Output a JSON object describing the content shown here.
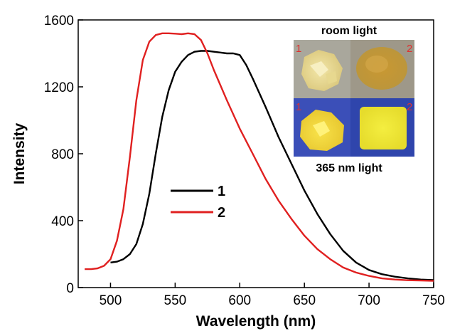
{
  "chart_data": {
    "type": "line",
    "title": "",
    "xlabel": "Wavelength (nm)",
    "ylabel": "Intensity",
    "xlim": [
      475,
      750
    ],
    "ylim": [
      0,
      1600
    ],
    "x_ticks": [
      500,
      550,
      600,
      650,
      700,
      750
    ],
    "y_ticks": [
      0,
      400,
      800,
      1200,
      1600
    ],
    "grid": false,
    "legend_position": "center-left",
    "series": [
      {
        "name": "1",
        "color": "#000000",
        "x": [
          500,
          505,
          510,
          515,
          520,
          525,
          530,
          535,
          540,
          545,
          550,
          555,
          560,
          565,
          570,
          575,
          580,
          585,
          590,
          595,
          600,
          605,
          610,
          620,
          630,
          640,
          650,
          660,
          670,
          680,
          690,
          700,
          710,
          720,
          730,
          740,
          750
        ],
        "y": [
          150,
          155,
          170,
          200,
          260,
          380,
          560,
          800,
          1020,
          1180,
          1290,
          1350,
          1390,
          1410,
          1415,
          1415,
          1410,
          1405,
          1400,
          1400,
          1390,
          1330,
          1250,
          1080,
          900,
          740,
          580,
          440,
          320,
          220,
          150,
          105,
          80,
          65,
          55,
          48,
          45
        ]
      },
      {
        "name": "2",
        "color": "#e02020",
        "x": [
          480,
          485,
          490,
          495,
          500,
          505,
          510,
          515,
          520,
          525,
          530,
          535,
          540,
          545,
          550,
          555,
          560,
          565,
          570,
          575,
          580,
          590,
          600,
          610,
          620,
          630,
          640,
          650,
          660,
          670,
          680,
          690,
          700,
          710,
          720,
          730,
          740,
          750
        ],
        "y": [
          110,
          110,
          115,
          130,
          170,
          280,
          470,
          780,
          1120,
          1360,
          1470,
          1510,
          1520,
          1520,
          1518,
          1515,
          1520,
          1515,
          1480,
          1400,
          1300,
          1120,
          950,
          800,
          650,
          520,
          410,
          310,
          230,
          170,
          120,
          90,
          70,
          55,
          48,
          44,
          42,
          40
        ]
      }
    ]
  },
  "inset": {
    "top_caption": "room light",
    "bottom_caption": "365 nm light",
    "panel_labels": [
      "1",
      "2",
      "1",
      "2"
    ]
  }
}
